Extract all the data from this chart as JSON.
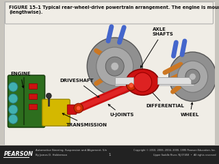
{
  "bg_color": "#c8c5be",
  "page_bg": "#f0ede6",
  "title_text": "FIGURE 15–1 Typical rear-wheel-drive powertrain arrangement. The engine is mounted longitudinal\n(lengthwise).",
  "title_fontsize": 5.0,
  "footer_bg": "#1e1e1e",
  "footer_left_bold": "PEARSON",
  "footer_book": "Automotive Steering, Suspension and Alignment, 5/e\nBy James D. Halderman",
  "footer_page": "1",
  "footer_right": "Copyright © 2010, 2006, 2004, 2000, 1995 Pearson Education, Inc.\nUpper Saddle River, NJ 07458 • All rights reserved",
  "diagram": {
    "engine_color": "#2d6e1e",
    "engine_dark": "#1a4010",
    "teal_color": "#40b0b0",
    "yellow_color": "#d4b800",
    "red_color": "#cc1111",
    "red_bright": "#dd3322",
    "orange_color": "#cc7722",
    "blue_color": "#4466cc",
    "grey_wheel": "#8a8a8a",
    "grey_light": "#aaaaaa",
    "white_axle": "#e0e0e0",
    "bg_diagram": "#f8f5ee"
  }
}
